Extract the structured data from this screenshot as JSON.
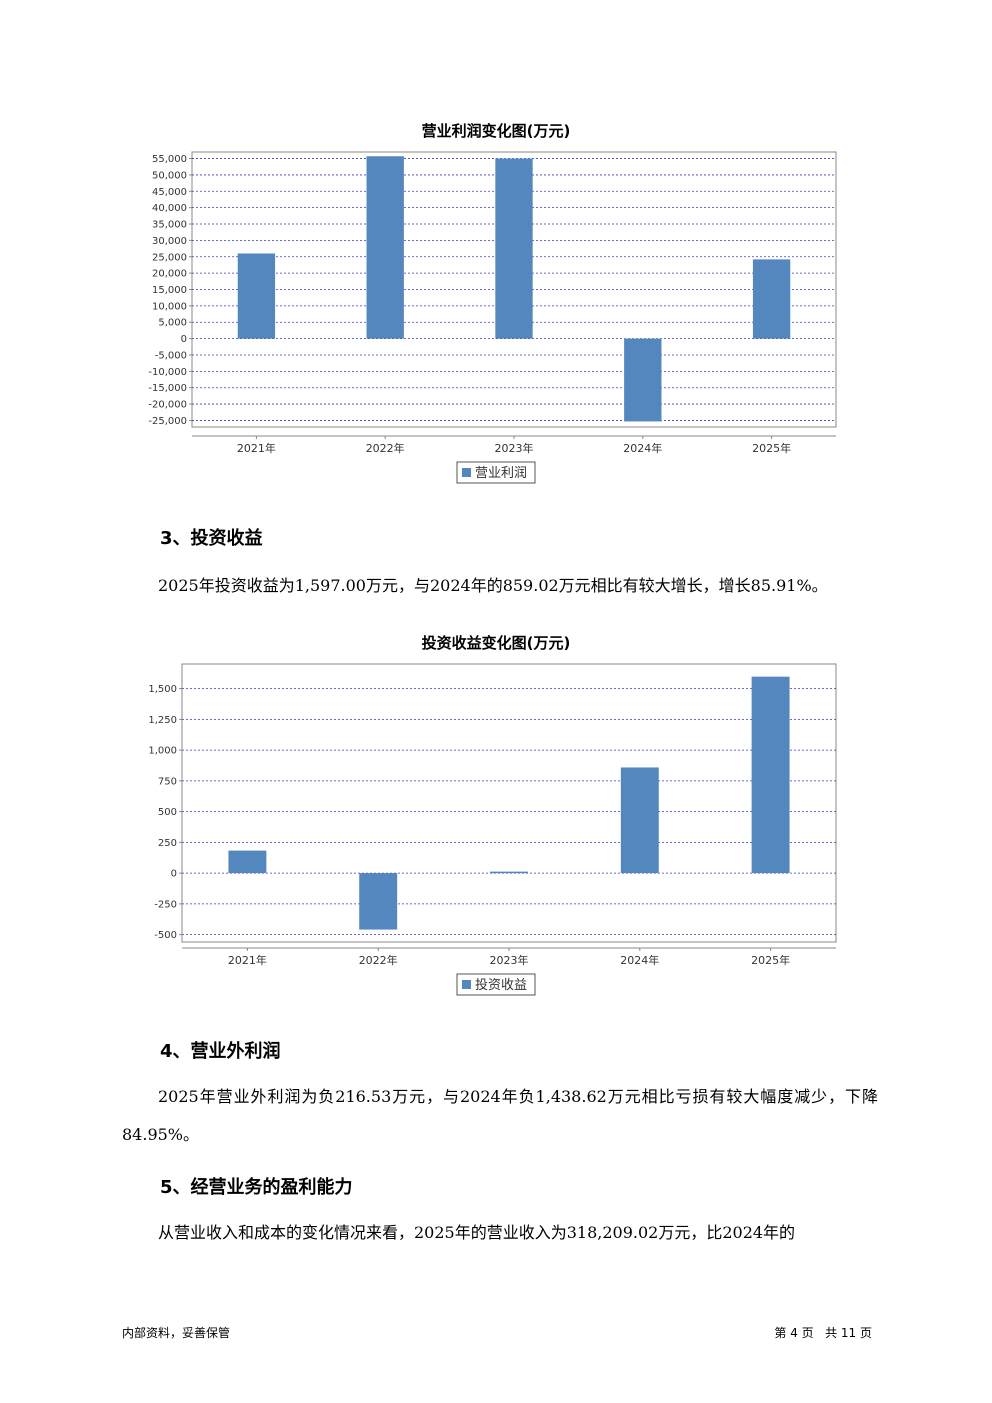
{
  "charts": [
    {
      "title": "营业利润变化图(万元)",
      "legend": "营业利润",
      "chart_data": {
        "type": "bar",
        "title": "营业利润变化图(万元)",
        "categories": [
          "2021年",
          "2022年",
          "2023年",
          "2024年",
          "2025年"
        ],
        "series": [
          {
            "name": "营业利润",
            "values": [
              26000,
              55700,
              55000,
              -25300,
              24200
            ]
          }
        ],
        "ylim": [
          -27000,
          57000
        ],
        "yticks": [
          -25000,
          -20000,
          -15000,
          -10000,
          -5000,
          0,
          5000,
          10000,
          15000,
          20000,
          25000,
          30000,
          35000,
          40000,
          45000,
          50000,
          55000
        ],
        "ytick_labels": [
          "-25,000",
          "-20,000",
          "-15,000",
          "-10,000",
          "-5,000",
          "0",
          "5,000",
          "10,000",
          "15,000",
          "20,000",
          "25,000",
          "30,000",
          "35,000",
          "40,000",
          "45,000",
          "50,000",
          "55,000"
        ],
        "grid": true,
        "legend_position": "bottom",
        "bar_color": "#5487bd"
      }
    },
    {
      "title": "投资收益变化图(万元)",
      "legend": "投资收益",
      "chart_data": {
        "type": "bar",
        "title": "投资收益变化图(万元)",
        "categories": [
          "2021年",
          "2022年",
          "2023年",
          "2024年",
          "2025年"
        ],
        "series": [
          {
            "name": "投资收益",
            "values": [
              183,
              -459,
              12,
              859.02,
              1597.0
            ]
          }
        ],
        "ylim": [
          -560,
          1700
        ],
        "yticks": [
          -500,
          -250,
          0,
          250,
          500,
          750,
          1000,
          1250,
          1500
        ],
        "ytick_labels": [
          "-500",
          "-250",
          "0",
          "250",
          "500",
          "750",
          "1,000",
          "1,250",
          "1,500"
        ],
        "grid": true,
        "legend_position": "bottom",
        "bar_color": "#5487bd"
      }
    }
  ],
  "sections": {
    "s3": {
      "heading": "3、投资收益",
      "text": "2025年投资收益为1,597.00万元，与2024年的859.02万元相比有较大增长，增长85.91%。"
    },
    "s4": {
      "heading": "4、营业外利润",
      "text": "2025年营业外利润为负216.53万元，与2024年负1,438.62万元相比亏损有较大幅度减少，下降84.95%。"
    },
    "s5": {
      "heading": "5、经营业务的盈利能力",
      "text": "从营业收入和成本的变化情况来看，2025年的营业收入为318,209.02万元，比2024年的"
    }
  },
  "footer": {
    "left": "内部资料，妥善保管",
    "right": "第 4 页   共 11 页"
  }
}
